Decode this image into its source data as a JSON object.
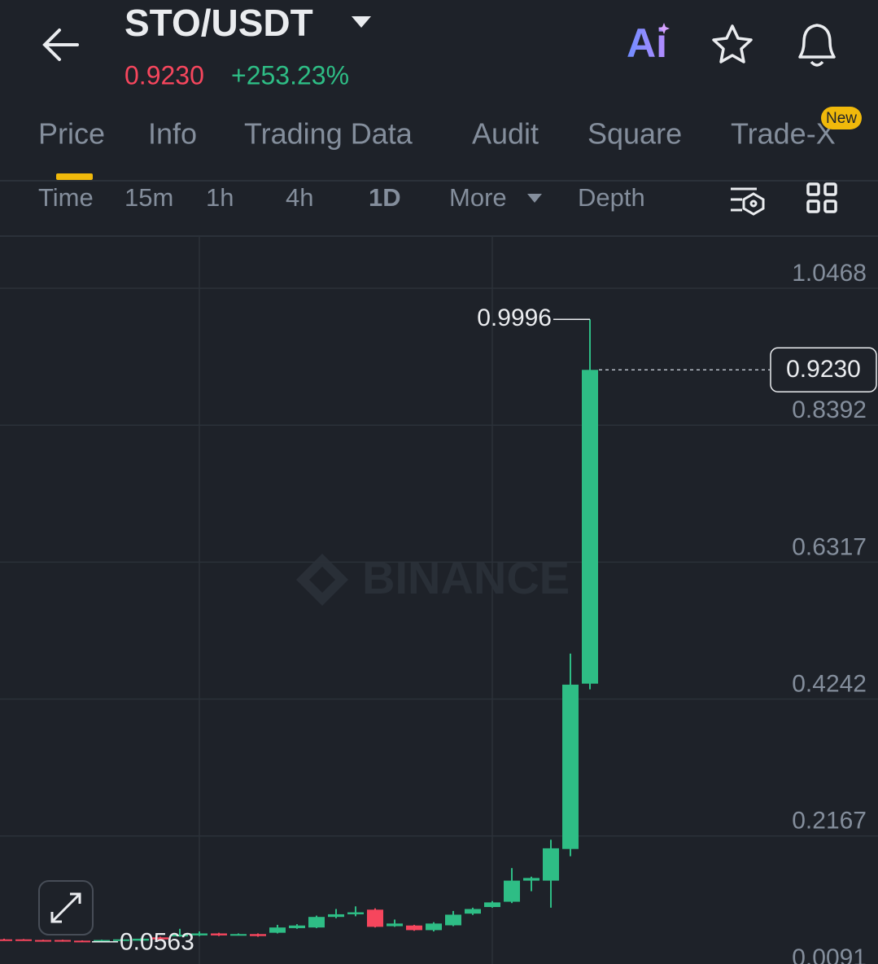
{
  "header": {
    "pair": "STO/USDT",
    "price": "0.9230",
    "change": "+253.23%",
    "ai": "Ai"
  },
  "tabs": [
    "Price",
    "Info",
    "Trading Data",
    "Audit",
    "Square",
    "Trade-X"
  ],
  "new_badge": "New",
  "intervals": [
    "Time",
    "15m",
    "1h",
    "4h",
    "1D",
    "More",
    "Depth"
  ],
  "watermark": "BINANCE",
  "chart_data": {
    "type": "candlestick",
    "open": [
      0.06,
      0.06,
      0.059,
      0.059,
      0.058,
      0.057,
      0.059,
      0.058,
      0.063,
      0.065,
      0.066,
      0.069,
      0.067,
      0.068,
      0.07,
      0.077,
      0.078,
      0.094,
      0.098,
      0.105,
      0.08,
      0.081,
      0.074,
      0.0813,
      0.099,
      0.109,
      0.117,
      0.149,
      0.149,
      0.197,
      0.4475
    ],
    "high": [
      0.061,
      0.0605,
      0.0595,
      0.0595,
      0.0585,
      0.0595,
      0.0605,
      0.0615,
      0.064,
      0.076,
      0.072,
      0.07,
      0.069,
      0.069,
      0.082,
      0.083,
      0.096,
      0.106,
      0.11,
      0.107,
      0.09,
      0.082,
      0.086,
      0.103,
      0.108,
      0.118,
      0.168,
      0.155,
      0.211,
      0.493,
      0.9996
    ],
    "low": [
      0.0585,
      0.0585,
      0.0575,
      0.0565,
      0.0563,
      0.0565,
      0.0585,
      0.0575,
      0.0595,
      0.064,
      0.065,
      0.065,
      0.066,
      0.064,
      0.069,
      0.076,
      0.077,
      0.092,
      0.095,
      0.078,
      0.079,
      0.073,
      0.072,
      0.08,
      0.097,
      0.108,
      0.115,
      0.133,
      0.108,
      0.186,
      0.439
    ],
    "close": [
      0.059,
      0.059,
      0.058,
      0.057,
      0.0565,
      0.059,
      0.06,
      0.061,
      0.06,
      0.067,
      0.069,
      0.066,
      0.068,
      0.065,
      0.078,
      0.081,
      0.094,
      0.098,
      0.101,
      0.079,
      0.084,
      0.074,
      0.084,
      0.0974,
      0.106,
      0.116,
      0.149,
      0.153,
      0.198,
      0.446,
      0.923
    ],
    "up_color": "#2ebd85",
    "down_color": "#f6465d",
    "ylim": [
      0.0091,
      1.1257
    ],
    "yticks": [
      0.0091,
      0.2167,
      0.4242,
      0.6317,
      0.8392,
      1.0468
    ],
    "grid": true,
    "max_marker": 0.9996,
    "min_marker": 0.0563,
    "last_price": {
      "value": 0.923,
      "label": "0.9230"
    }
  }
}
